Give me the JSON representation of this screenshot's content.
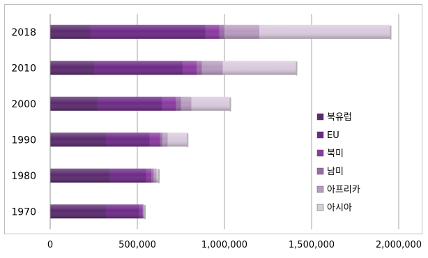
{
  "chart_data": {
    "type": "bar",
    "orientation": "horizontal",
    "stacked": true,
    "categories": [
      "2018",
      "2010",
      "2000",
      "1990",
      "1980",
      "1970"
    ],
    "series": [
      {
        "name": "북유럽",
        "color": "#5a2a6e",
        "values": [
          230000,
          250000,
          270000,
          320000,
          340000,
          320000
        ]
      },
      {
        "name": "EU",
        "color": "#6d2a87",
        "values": [
          660000,
          510000,
          370000,
          250000,
          210000,
          190000
        ]
      },
      {
        "name": "북미",
        "color": "#8a3aa0",
        "values": [
          80000,
          80000,
          80000,
          60000,
          30000,
          20000
        ]
      },
      {
        "name": "남미",
        "color": "#9a6aa8",
        "values": [
          30000,
          30000,
          30000,
          15000,
          15000,
          5000
        ]
      },
      {
        "name": "아프리카",
        "color": "#b79bbf",
        "values": [
          200000,
          120000,
          60000,
          30000,
          15000,
          5000
        ]
      },
      {
        "name": "아시아",
        "color": "#d9cadd",
        "values": [
          750000,
          420000,
          220000,
          110000,
          10000,
          0
        ]
      }
    ],
    "xlim": [
      0,
      2000000
    ],
    "xticks": [
      "0",
      "500,000",
      "1,000,000",
      "1,500,000",
      "2,000,000"
    ],
    "xtick_values": [
      0,
      500000,
      1000000,
      1500000,
      2000000
    ],
    "grid": true,
    "legend_position": "right",
    "title": "",
    "xlabel": "",
    "ylabel": ""
  }
}
